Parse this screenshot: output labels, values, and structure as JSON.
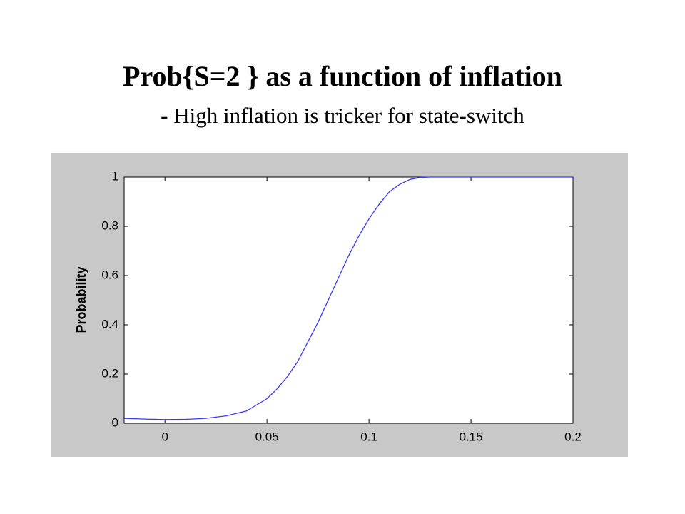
{
  "chart_data": {
    "type": "line",
    "title": "Prob{S=2 } as a function of inflation",
    "subtitle": "- High inflation is tricker for state-switch",
    "y_label": "Probability",
    "x": [
      -0.02,
      -0.01,
      0,
      0.01,
      0.02,
      0.03,
      0.04,
      0.05,
      0.055,
      0.06,
      0.065,
      0.07,
      0.075,
      0.08,
      0.085,
      0.09,
      0.095,
      0.1,
      0.105,
      0.11,
      0.115,
      0.12,
      0.125,
      0.13,
      0.15,
      0.2
    ],
    "values": [
      0.02,
      0.017,
      0.015,
      0.016,
      0.02,
      0.03,
      0.05,
      0.1,
      0.14,
      0.19,
      0.25,
      0.33,
      0.41,
      0.5,
      0.59,
      0.68,
      0.76,
      0.83,
      0.89,
      0.94,
      0.97,
      0.99,
      0.998,
      1,
      1,
      1
    ],
    "color": "#3a3aff",
    "xlim": [
      -0.02,
      0.2
    ],
    "xticks": [
      0,
      0.05,
      0.1,
      0.15,
      0.2
    ],
    "ylim": [
      0,
      1
    ],
    "yticks": [
      0,
      0.2,
      0.4,
      0.6,
      0.8,
      1
    ]
  }
}
